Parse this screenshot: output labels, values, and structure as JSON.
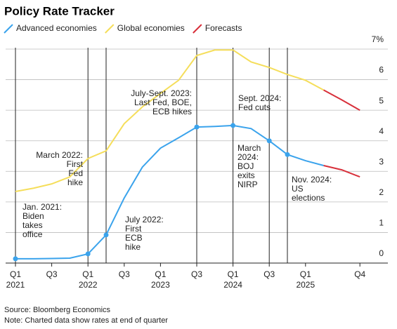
{
  "chart_data": {
    "type": "line",
    "title": "Policy Rate Tracker",
    "source": "Source: Bloomberg Economics",
    "note": "Note: Charted data show rates at end of quarter",
    "categories": [
      [
        "Q1",
        "2021"
      ],
      null,
      [
        "Q3"
      ],
      null,
      [
        "Q1",
        "2022"
      ],
      null,
      [
        "Q3"
      ],
      null,
      [
        "Q1",
        "2023"
      ],
      null,
      [
        "Q3"
      ],
      null,
      [
        "Q1",
        "2024"
      ],
      null,
      [
        "Q3"
      ],
      null,
      [
        "Q1",
        "2025"
      ],
      null,
      null,
      [
        "Q4"
      ]
    ],
    "series": [
      {
        "name": "Advanced economies",
        "color": "#3aa3ec",
        "values": [
          0.14,
          0.14,
          0.15,
          0.16,
          0.3,
          0.92,
          2.13,
          3.14,
          3.76,
          4.1,
          4.45,
          4.47,
          4.5,
          4.4,
          4.0,
          3.55,
          3.35,
          3.19,
          3.05,
          2.82
        ]
      },
      {
        "name": "Global economies",
        "color": "#f5de5b",
        "values": [
          2.34,
          2.45,
          2.59,
          2.82,
          3.42,
          3.67,
          4.56,
          5.11,
          5.55,
          5.98,
          6.79,
          6.97,
          6.97,
          6.58,
          6.4,
          6.17,
          5.98,
          5.66,
          5.34,
          5.0
        ]
      }
    ],
    "forecast": {
      "name": "Forecasts",
      "color": "#d8303b",
      "from_index": 17
    },
    "ylim": [
      0,
      7
    ],
    "yticks": [
      0,
      1,
      2,
      3,
      4,
      5,
      6,
      {
        "value": 7,
        "label": "7%"
      }
    ],
    "grid": true,
    "annotations": [
      {
        "index": 0,
        "lines": [
          "Jan. 2021:",
          "Biden",
          "takes",
          "office"
        ]
      },
      {
        "index": 4,
        "lines": [
          "March 2022:",
          "First",
          "Fed",
          "hike"
        ]
      },
      {
        "index": 5,
        "lines": [
          "July 2022:",
          "First",
          "ECB",
          "hike"
        ]
      },
      {
        "index": 10,
        "lines": [
          "July-Sept. 2023:",
          "Last Fed, BOE,",
          "ECB hikes"
        ]
      },
      {
        "index": 12,
        "lines": [
          "March",
          "2024:",
          "BOJ",
          "exits",
          "NIRP"
        ]
      },
      {
        "index": 14,
        "lines": [
          "Sept. 2024:",
          "Fed cuts"
        ]
      },
      {
        "index": 15,
        "lines": [
          "Nov. 2024:",
          "US",
          "elections"
        ]
      }
    ]
  }
}
